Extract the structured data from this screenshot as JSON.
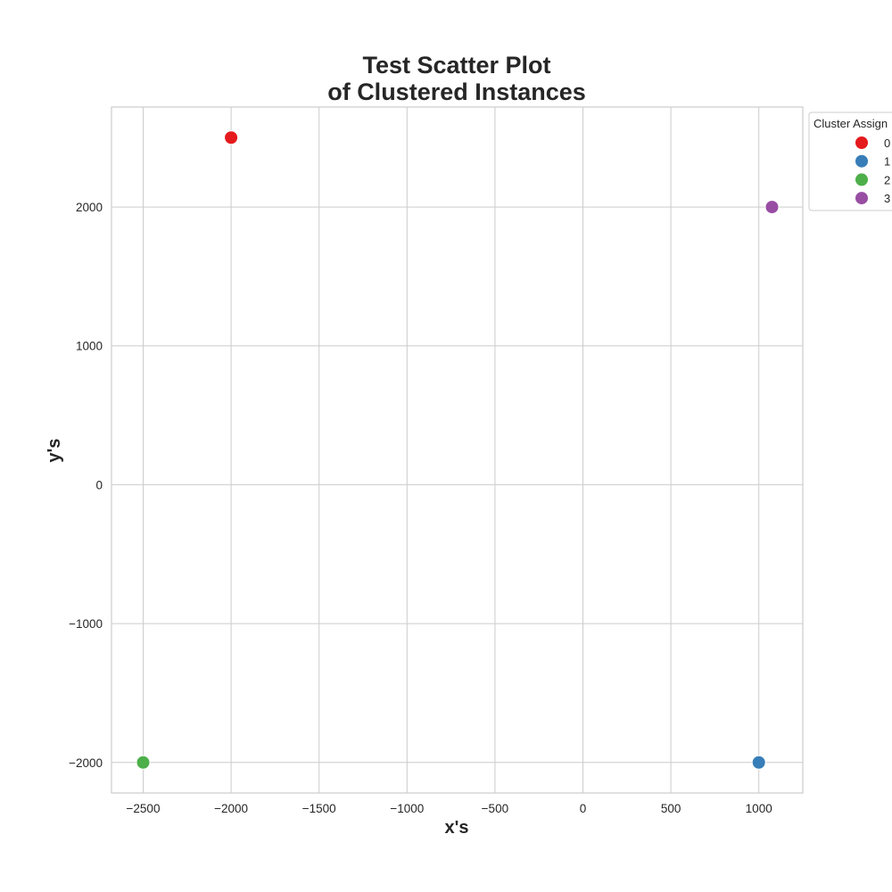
{
  "chart_data": {
    "type": "scatter",
    "title": [
      "Test Scatter Plot",
      "of Clustered Instances"
    ],
    "xlabel": "x's",
    "ylabel": "y's",
    "xlim": [
      -2680,
      1250
    ],
    "ylim": [
      -2220,
      2720
    ],
    "x_ticks": [
      -2500,
      -2000,
      -1500,
      -1000,
      -500,
      0,
      500,
      1000
    ],
    "x_tick_labels": [
      "−2500",
      "−2000",
      "−1500",
      "−1000",
      "−500",
      "0",
      "500",
      "1000"
    ],
    "y_ticks": [
      -2000,
      -1000,
      0,
      1000,
      2000
    ],
    "y_tick_labels": [
      "−2000",
      "−1000",
      "0",
      "1000",
      "2000"
    ],
    "grid": true,
    "legend": {
      "title": "Cluster Assign",
      "placement": "outside-top-right",
      "entries": [
        "0",
        "1",
        "2",
        "3"
      ]
    },
    "series": [
      {
        "name": "0",
        "color": "#e41a1c",
        "points": [
          {
            "x": -2000,
            "y": 2500
          }
        ]
      },
      {
        "name": "1",
        "color": "#377eb8",
        "points": [
          {
            "x": 1000,
            "y": -2000
          }
        ]
      },
      {
        "name": "2",
        "color": "#4daf4a",
        "points": [
          {
            "x": -2500,
            "y": -2000
          }
        ]
      },
      {
        "name": "3",
        "color": "#984ea3",
        "points": [
          {
            "x": 1075,
            "y": 2000
          }
        ]
      }
    ]
  }
}
